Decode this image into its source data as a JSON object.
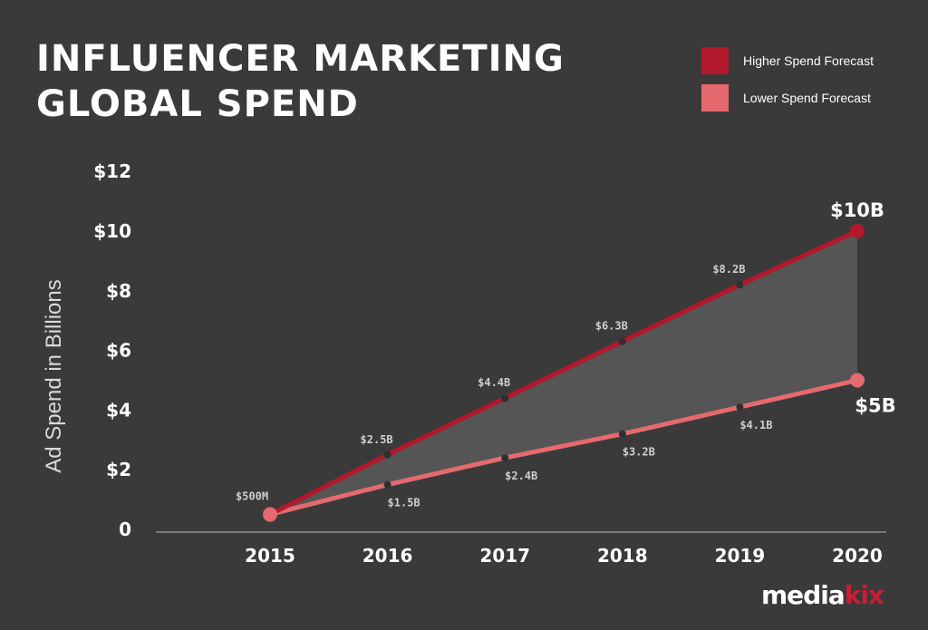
{
  "title_line1": "INFLUENCER MARKETING",
  "title_line2": "GLOBAL SPEND",
  "logo": {
    "part1": "media",
    "part2": "kix"
  },
  "chart_data": {
    "type": "line",
    "title": "INFLUENCER MARKETING GLOBAL SPEND",
    "xlabel": "",
    "ylabel": "Ad Spend in Billions",
    "x": [
      2015,
      2016,
      2017,
      2018,
      2019,
      2020
    ],
    "x_tick_labels": [
      "2015",
      "2016",
      "2017",
      "2018",
      "2019",
      "2020"
    ],
    "ylim": [
      0,
      12
    ],
    "y_ticks": [
      0,
      2,
      4,
      6,
      8,
      10,
      12
    ],
    "y_tick_labels": [
      "0",
      "$2",
      "$4",
      "$6",
      "$8",
      "$10",
      "$12"
    ],
    "grid": false,
    "legend_position": "top-right",
    "area_between_series": true,
    "area_color": "#555556",
    "series": [
      {
        "name": "Higher Spend Forecast",
        "color": "#b3182c",
        "values": [
          0.5,
          2.5,
          4.4,
          6.3,
          8.2,
          10
        ],
        "labels": [
          "$500M",
          "$2.5B",
          "$4.4B",
          "$6.3B",
          "$8.2B",
          "$10B"
        ]
      },
      {
        "name": "Lower Spend Forecast",
        "color": "#e56a6e",
        "values": [
          0.5,
          1.5,
          2.4,
          3.2,
          4.1,
          5
        ],
        "labels": [
          "",
          "$1.5B",
          "$2.4B",
          "$3.2B",
          "$4.1B",
          "$5B"
        ]
      }
    ]
  }
}
